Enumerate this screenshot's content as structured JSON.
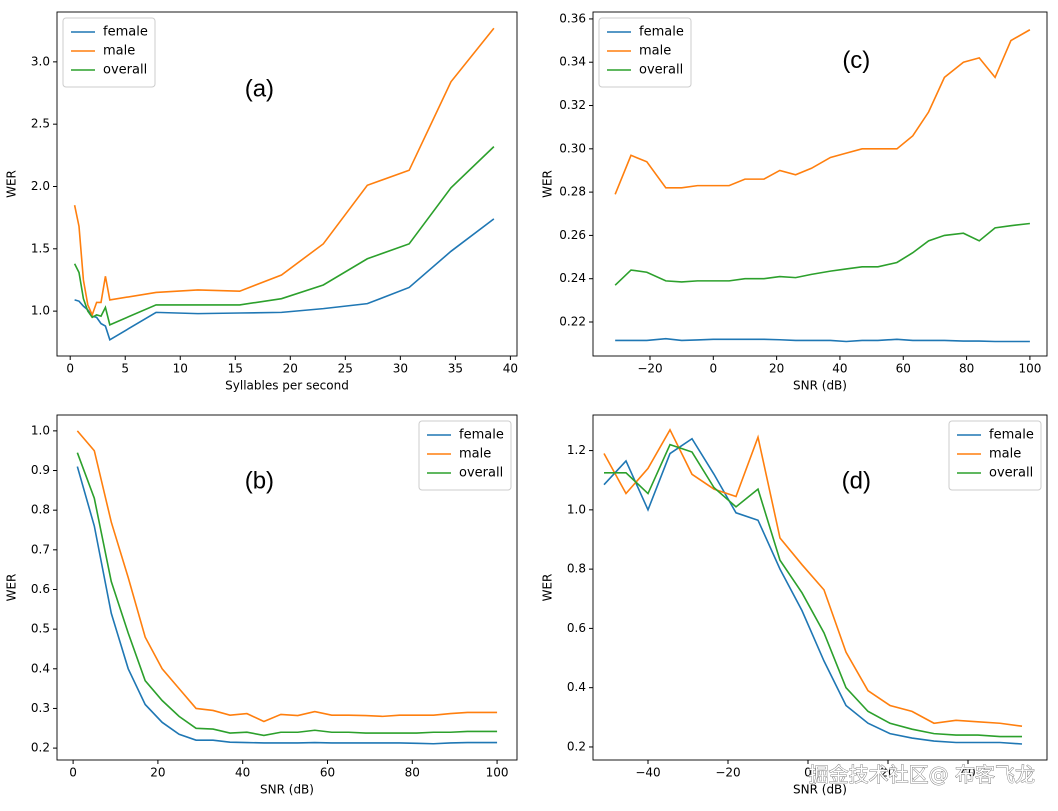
{
  "chart_data": [
    {
      "type": "line",
      "annotation": "(a)",
      "xlabel": "Syllables per second",
      "ylabel": "WER",
      "legend": "upper left",
      "x": [
        0.4,
        0.8,
        1.2,
        1.6,
        2.0,
        2.4,
        2.8,
        3.2,
        3.6,
        7.8,
        11.6,
        15.4,
        19.2,
        23,
        27,
        30.8,
        34.6,
        38.5
      ],
      "series": [
        {
          "name": "female",
          "color": "#1f77b4",
          "values": [
            1.09,
            1.08,
            1.04,
            1.01,
            0.96,
            0.95,
            0.9,
            0.88,
            0.77,
            0.99,
            0.98,
            0.985,
            0.99,
            1.02,
            1.06,
            1.19,
            1.48,
            1.74
          ]
        },
        {
          "name": "male",
          "color": "#ff7f0e",
          "values": [
            1.85,
            1.68,
            1.25,
            1.05,
            0.97,
            1.07,
            1.07,
            1.28,
            1.09,
            1.15,
            1.17,
            1.16,
            1.29,
            1.54,
            2.01,
            2.13,
            2.84,
            3.27
          ]
        },
        {
          "name": "overall",
          "color": "#2ca02c",
          "values": [
            1.38,
            1.31,
            1.1,
            1.0,
            0.95,
            0.97,
            0.96,
            1.03,
            0.89,
            1.05,
            1.05,
            1.05,
            1.1,
            1.21,
            1.42,
            1.54,
            1.99,
            2.32
          ]
        }
      ],
      "xlim": [
        -1.2,
        40.6
      ],
      "xticks": [
        0,
        5,
        10,
        15,
        20,
        25,
        30,
        35,
        40
      ],
      "ylim": [
        0.64,
        3.4
      ],
      "yticks": [
        {
          "value": 1,
          "label": "1.0"
        },
        1.5,
        {
          "value": 2,
          "label": "2.0"
        },
        2.5,
        {
          "value": 3,
          "label": "3.0"
        }
      ]
    },
    {
      "type": "line",
      "annotation": "(b)",
      "xlabel": "SNR (dB)",
      "ylabel": "WER",
      "legend": "upper right",
      "x": [
        1,
        5,
        9,
        13,
        17,
        21,
        25,
        29,
        33,
        37,
        41,
        45,
        49,
        53,
        57,
        61,
        65,
        69,
        73,
        77,
        81,
        85,
        89,
        93,
        97,
        100
      ],
      "series": [
        {
          "name": "female",
          "color": "#1f77b4",
          "values": [
            0.91,
            0.76,
            0.54,
            0.4,
            0.31,
            0.265,
            0.235,
            0.22,
            0.22,
            0.215,
            0.214,
            0.213,
            0.213,
            0.213,
            0.214,
            0.213,
            0.213,
            0.213,
            0.213,
            0.213,
            0.212,
            0.211,
            0.213,
            0.214,
            0.214,
            0.214
          ]
        },
        {
          "name": "male",
          "color": "#ff7f0e",
          "values": [
            1.0,
            0.95,
            0.77,
            0.63,
            0.48,
            0.4,
            0.35,
            0.3,
            0.295,
            0.283,
            0.287,
            0.267,
            0.285,
            0.282,
            0.292,
            0.283,
            0.283,
            0.282,
            0.28,
            0.283,
            0.283,
            0.283,
            0.287,
            0.29,
            0.29,
            0.29
          ]
        },
        {
          "name": "overall",
          "color": "#2ca02c",
          "values": [
            0.945,
            0.83,
            0.62,
            0.49,
            0.37,
            0.32,
            0.28,
            0.25,
            0.248,
            0.238,
            0.24,
            0.232,
            0.24,
            0.24,
            0.245,
            0.24,
            0.24,
            0.238,
            0.238,
            0.238,
            0.238,
            0.24,
            0.24,
            0.242,
            0.242,
            0.242
          ]
        }
      ],
      "xlim": [
        -3.8,
        104.7
      ],
      "xticks": [
        0,
        20,
        40,
        60,
        80,
        100
      ],
      "ylim": [
        0.17,
        1.04
      ],
      "yticks": [
        0.2,
        0.3,
        0.4,
        0.5,
        0.6,
        0.7,
        0.8,
        0.9,
        {
          "value": 1,
          "label": "1.0"
        }
      ]
    },
    {
      "type": "line",
      "annotation": "(c)",
      "xlabel": "SNR (dB)",
      "ylabel": "WER",
      "legend": "upper left",
      "x": [
        -31,
        -26,
        -21,
        -15,
        -10,
        -5,
        0,
        5,
        10,
        16,
        21,
        26,
        31,
        37,
        42,
        47,
        52,
        58,
        63,
        68,
        73,
        79,
        84,
        89,
        94,
        100
      ],
      "series": [
        {
          "name": "female",
          "color": "#1f77b4",
          "values": [
            0.2115,
            0.2115,
            0.2115,
            0.2123,
            0.2115,
            0.2117,
            0.212,
            0.212,
            0.212,
            0.212,
            0.2118,
            0.2115,
            0.2115,
            0.2115,
            0.211,
            0.2115,
            0.2115,
            0.212,
            0.2115,
            0.2115,
            0.2115,
            0.2112,
            0.2112,
            0.211,
            0.211,
            0.211
          ]
        },
        {
          "name": "male",
          "color": "#ff7f0e",
          "values": [
            0.279,
            0.297,
            0.294,
            0.282,
            0.282,
            0.283,
            0.283,
            0.283,
            0.286,
            0.286,
            0.29,
            0.288,
            0.291,
            0.296,
            0.298,
            0.3,
            0.3,
            0.3,
            0.306,
            0.317,
            0.333,
            0.34,
            0.342,
            0.333,
            0.35,
            0.355
          ]
        },
        {
          "name": "overall",
          "color": "#2ca02c",
          "values": [
            0.237,
            0.244,
            0.243,
            0.239,
            0.2385,
            0.239,
            0.239,
            0.239,
            0.24,
            0.24,
            0.241,
            0.2405,
            0.242,
            0.2435,
            0.2445,
            0.2455,
            0.2455,
            0.2475,
            0.252,
            0.2575,
            0.26,
            0.261,
            0.2575,
            0.2635,
            0.2645,
            0.2655
          ]
        }
      ],
      "xlim": [
        -38,
        105.4
      ],
      "xticks": [
        {
          "value": -20,
          "label": "−20"
        },
        0,
        20,
        40,
        60,
        80,
        100
      ],
      "ylim": [
        0.2043,
        0.3632
      ],
      "yticks": [
        0.22,
        0.24,
        0.26,
        0.28,
        {
          "value": 0.3,
          "label": "0.30"
        },
        0.32,
        0.34,
        0.36
      ]
    },
    {
      "type": "line",
      "annotation": "(d)",
      "xlabel": "SNR (dB)",
      "ylabel": "WER",
      "legend": "upper right",
      "x": [
        -51,
        -45.5,
        -40,
        -34.5,
        -29,
        -23.5,
        -18,
        -12.5,
        -7,
        -1.5,
        4,
        9.5,
        15,
        20.5,
        26,
        31.5,
        37,
        42.5,
        48,
        53.5
      ],
      "series": [
        {
          "name": "female",
          "color": "#1f77b4",
          "values": [
            1.085,
            1.165,
            1.0,
            1.19,
            1.24,
            1.12,
            0.99,
            0.965,
            0.8,
            0.66,
            0.49,
            0.34,
            0.28,
            0.245,
            0.23,
            0.22,
            0.215,
            0.215,
            0.215,
            0.21
          ]
        },
        {
          "name": "male",
          "color": "#ff7f0e",
          "values": [
            1.19,
            1.055,
            1.14,
            1.27,
            1.12,
            1.07,
            1.045,
            1.245,
            0.905,
            0.815,
            0.73,
            0.52,
            0.39,
            0.34,
            0.32,
            0.28,
            0.29,
            0.285,
            0.28,
            0.27
          ]
        },
        {
          "name": "overall",
          "color": "#2ca02c",
          "values": [
            1.125,
            1.125,
            1.055,
            1.22,
            1.195,
            1.075,
            1.01,
            1.07,
            0.83,
            0.72,
            0.585,
            0.4,
            0.32,
            0.28,
            0.26,
            0.245,
            0.24,
            0.24,
            0.235,
            0.235
          ]
        }
      ],
      "xlim": [
        -53.75,
        59.75
      ],
      "xticks": [
        {
          "value": -40,
          "label": "−40"
        },
        {
          "value": -20,
          "label": "−20"
        },
        0,
        20,
        40
      ],
      "ylim": [
        0.156,
        1.32
      ],
      "yticks": [
        0.2,
        0.4,
        0.6,
        0.8,
        {
          "value": 1,
          "label": "1.0"
        },
        1.2
      ]
    }
  ],
  "watermark": "掘金技术社区@ 布客飞龙"
}
